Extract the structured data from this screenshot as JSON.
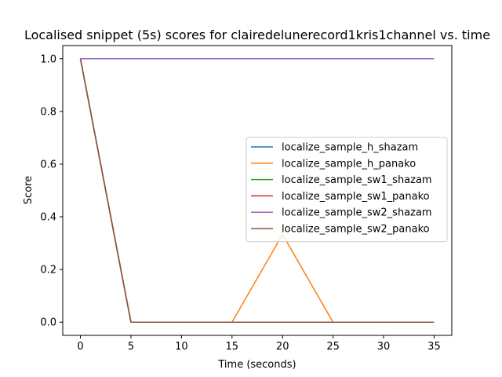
{
  "chart_data": {
    "type": "line",
    "title": "Localised snippet (5s) scores for clairedelunerecord1kris1channel vs. time",
    "xlabel": "Time (seconds)",
    "ylabel": "Score",
    "xlim": [
      -1.75,
      36.75
    ],
    "ylim": [
      -0.05,
      1.05
    ],
    "x": [
      0,
      5,
      10,
      15,
      20,
      25,
      30,
      35
    ],
    "xticks": [
      0,
      5,
      10,
      15,
      20,
      25,
      30,
      35
    ],
    "yticks": [
      0.0,
      0.2,
      0.4,
      0.6,
      0.8,
      1.0
    ],
    "xtick_labels": [
      "0",
      "5",
      "10",
      "15",
      "20",
      "25",
      "30",
      "35"
    ],
    "ytick_labels": [
      "0.0",
      "0.2",
      "0.4",
      "0.6",
      "0.8",
      "1.0"
    ],
    "grid": false,
    "legend_position": "center-right",
    "series": [
      {
        "name": "localize_sample_h_shazam",
        "color": "#1f77b4",
        "values": [
          1,
          0,
          0,
          0,
          0,
          0,
          0,
          0
        ]
      },
      {
        "name": "localize_sample_h_panako",
        "color": "#ff7f0e",
        "values": [
          1,
          0,
          0,
          0,
          0.333,
          0,
          0,
          0
        ]
      },
      {
        "name": "localize_sample_sw1_shazam",
        "color": "#2ca02c",
        "values": [
          1,
          0,
          0,
          0,
          0,
          0,
          0,
          0
        ]
      },
      {
        "name": "localize_sample_sw1_panako",
        "color": "#d62728",
        "values": [
          1,
          0,
          0,
          0,
          0,
          0,
          0,
          0
        ]
      },
      {
        "name": "localize_sample_sw2_shazam",
        "color": "#9467bd",
        "values": [
          1,
          1,
          1,
          1,
          1,
          1,
          1,
          1
        ]
      },
      {
        "name": "localize_sample_sw2_panako",
        "color": "#8c564b",
        "values": [
          1,
          0,
          0,
          0,
          0,
          0,
          0,
          0
        ]
      }
    ]
  }
}
